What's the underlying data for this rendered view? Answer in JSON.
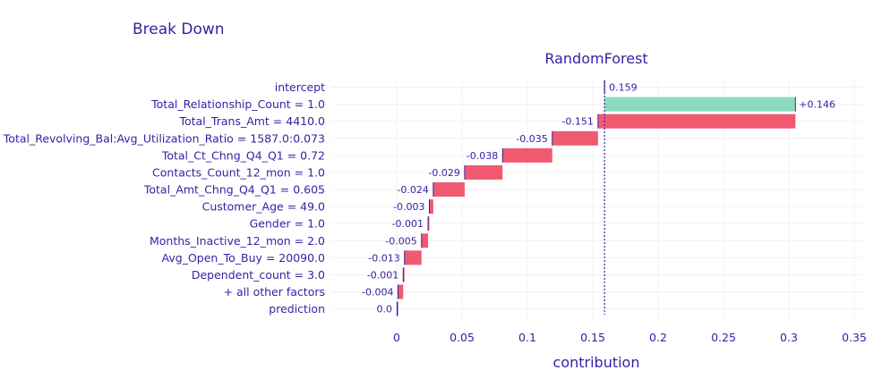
{
  "chart_data": {
    "type": "waterfall",
    "title": "Break Down",
    "subtitle": "RandomForest",
    "xlabel": "contribution",
    "xlim": [
      -0.05,
      0.35
    ],
    "xticks": [
      "0",
      "0.05",
      "0.1",
      "0.15",
      "0.2",
      "0.25",
      "0.3",
      "0.35"
    ],
    "xtick_values": [
      0,
      0.05,
      0.1,
      0.15,
      0.2,
      0.25,
      0.3,
      0.35
    ],
    "intercept": 0.159,
    "grid": true,
    "colors": {
      "positive": "#8bdcbe",
      "negative": "#f05a71",
      "prediction": "#371ea3",
      "text": "#371ea3"
    },
    "rows": [
      {
        "variable": "intercept",
        "contribution": 0.159,
        "label": "0.159",
        "kind": "intercept"
      },
      {
        "variable": "Total_Relationship_Count = 1.0",
        "contribution": 0.146,
        "label": "+0.146",
        "kind": "positive"
      },
      {
        "variable": "Total_Trans_Amt = 4410.0",
        "contribution": -0.151,
        "label": "-0.151",
        "kind": "negative"
      },
      {
        "variable": "Total_Revolving_Bal:Avg_Utilization_Ratio = 1587.0:0.073",
        "contribution": -0.035,
        "label": "-0.035",
        "kind": "negative"
      },
      {
        "variable": "Total_Ct_Chng_Q4_Q1 = 0.72",
        "contribution": -0.038,
        "label": "-0.038",
        "kind": "negative"
      },
      {
        "variable": "Contacts_Count_12_mon = 1.0",
        "contribution": -0.029,
        "label": "-0.029",
        "kind": "negative"
      },
      {
        "variable": "Total_Amt_Chng_Q4_Q1 = 0.605",
        "contribution": -0.024,
        "label": "-0.024",
        "kind": "negative"
      },
      {
        "variable": "Customer_Age = 49.0",
        "contribution": -0.003,
        "label": "-0.003",
        "kind": "negative"
      },
      {
        "variable": "Gender = 1.0",
        "contribution": -0.001,
        "label": "-0.001",
        "kind": "negative"
      },
      {
        "variable": "Months_Inactive_12_mon = 2.0",
        "contribution": -0.005,
        "label": "-0.005",
        "kind": "negative"
      },
      {
        "variable": "Avg_Open_To_Buy = 20090.0",
        "contribution": -0.013,
        "label": "-0.013",
        "kind": "negative"
      },
      {
        "variable": "Dependent_count = 3.0",
        "contribution": -0.001,
        "label": "-0.001",
        "kind": "negative"
      },
      {
        "variable": "+ all other factors",
        "contribution": -0.004,
        "label": "-0.004",
        "kind": "negative"
      },
      {
        "variable": "prediction",
        "contribution": 0.0,
        "label": "0.0",
        "kind": "prediction"
      }
    ]
  }
}
